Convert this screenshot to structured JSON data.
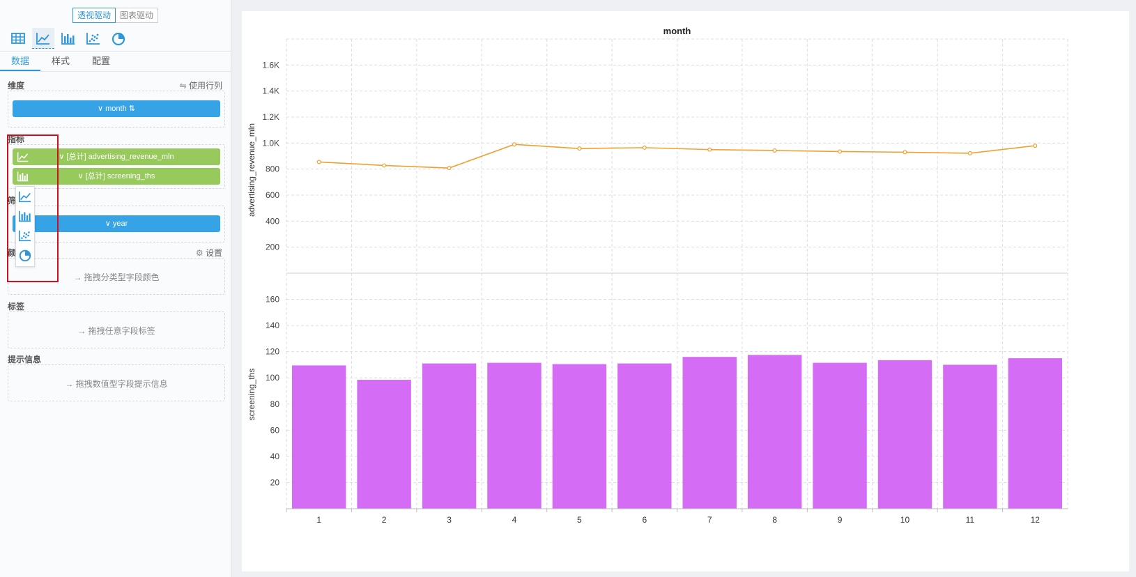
{
  "mode_switch": {
    "pivot": "透视驱动",
    "chart": "图表驱动"
  },
  "chart_types": [
    "table-icon",
    "line-chart-icon",
    "bar-chart-icon",
    "scatter-icon",
    "pie-icon"
  ],
  "tabs": [
    "数据",
    "样式",
    "配置"
  ],
  "sections": {
    "dimension": {
      "label": "维度",
      "action": "使用行列",
      "field": "month"
    },
    "metric": {
      "label": "指标",
      "fields": [
        "[总计] advertising_revenue_mln",
        "[总计] screening_ths"
      ]
    },
    "filter": {
      "label": "筛选",
      "field": "year"
    },
    "color": {
      "label": "颜色",
      "action": "设置",
      "hint": "拖拽分类型字段颜色"
    },
    "labels": {
      "label": "标签",
      "hint": "拖拽任意字段标签"
    },
    "tooltip": {
      "label": "提示信息",
      "hint": "拖拽数值型字段提示信息"
    }
  },
  "colors": {
    "accent": "#2f97d8",
    "line": "#f0a030",
    "bar": "#d56cf5",
    "dim_pill": "#35a3e6",
    "metric_pill": "#97c95c",
    "highlight": "#d0101a"
  },
  "chart_data": {
    "type": "line+bar",
    "title": "month",
    "categories": [
      "1",
      "2",
      "3",
      "4",
      "5",
      "6",
      "7",
      "8",
      "9",
      "10",
      "11",
      "12"
    ],
    "series": [
      {
        "name": "advertising_revenue_mln",
        "type": "line",
        "values": [
          855,
          828,
          808,
          990,
          958,
          965,
          950,
          943,
          935,
          930,
          922,
          980
        ]
      },
      {
        "name": "screening_ths",
        "type": "bar",
        "values": [
          109.5,
          98.5,
          111.0,
          111.5,
          110.5,
          111.0,
          116.0,
          117.5,
          111.5,
          113.5,
          110.0,
          115.0
        ]
      }
    ],
    "top_axis": {
      "label": "advertising_revenue_mln",
      "ticks": [
        "200",
        "400",
        "600",
        "800",
        "1.0K",
        "1.2K",
        "1.4K",
        "1.6K"
      ],
      "ylim": [
        0,
        1800
      ]
    },
    "bottom_axis": {
      "label": "screening_ths",
      "ticks": [
        "20",
        "40",
        "60",
        "80",
        "100",
        "120",
        "140",
        "160"
      ],
      "ylim": [
        0,
        180
      ]
    },
    "grid": true
  }
}
